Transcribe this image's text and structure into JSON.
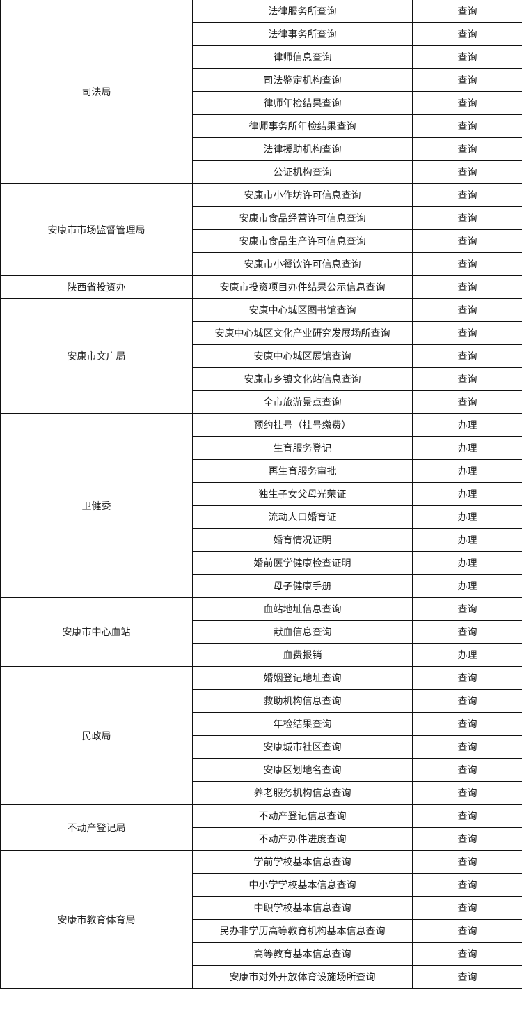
{
  "groups": [
    {
      "department": "司法局",
      "items": [
        {
          "service": "法律服务所查询",
          "type": "查询"
        },
        {
          "service": "法律事务所查询",
          "type": "查询"
        },
        {
          "service": "律师信息查询",
          "type": "查询"
        },
        {
          "service": "司法鉴定机构查询",
          "type": "查询"
        },
        {
          "service": "律师年检结果查询",
          "type": "查询"
        },
        {
          "service": "律师事务所年检结果查询",
          "type": "查询"
        },
        {
          "service": "法律援助机构查询",
          "type": "查询"
        },
        {
          "service": "公证机构查询",
          "type": "查询"
        }
      ]
    },
    {
      "department": "安康市市场监督管理局",
      "items": [
        {
          "service": "安康市小作坊许可信息查询",
          "type": "查询"
        },
        {
          "service": "安康市食品经营许可信息查询",
          "type": "查询"
        },
        {
          "service": "安康市食品生产许可信息查询",
          "type": "查询"
        },
        {
          "service": "安康市小餐饮许可信息查询",
          "type": "查询"
        }
      ]
    },
    {
      "department": "陕西省投资办",
      "items": [
        {
          "service": "安康市投资项目办件结果公示信息查询",
          "type": "查询"
        }
      ]
    },
    {
      "department": "安康市文广局",
      "items": [
        {
          "service": "安康中心城区图书馆查询",
          "type": "查询"
        },
        {
          "service": "安康中心城区文化产业研究发展场所查询",
          "type": "查询"
        },
        {
          "service": "安康中心城区展馆查询",
          "type": "查询"
        },
        {
          "service": "安康市乡镇文化站信息查询",
          "type": "查询"
        },
        {
          "service": "全市旅游景点查询",
          "type": "查询"
        }
      ]
    },
    {
      "department": "卫健委",
      "items": [
        {
          "service": "预约挂号（挂号缴费）",
          "type": "办理"
        },
        {
          "service": "生育服务登记",
          "type": "办理"
        },
        {
          "service": "再生育服务审批",
          "type": "办理"
        },
        {
          "service": "独生子女父母光荣证",
          "type": "办理"
        },
        {
          "service": "流动人口婚育证",
          "type": "办理"
        },
        {
          "service": "婚育情况证明",
          "type": "办理"
        },
        {
          "service": "婚前医学健康检查证明",
          "type": "办理"
        },
        {
          "service": "母子健康手册",
          "type": "办理"
        }
      ]
    },
    {
      "department": "安康市中心血站",
      "items": [
        {
          "service": "血站地址信息查询",
          "type": "查询"
        },
        {
          "service": "献血信息查询",
          "type": "查询"
        },
        {
          "service": "血费报销",
          "type": "办理"
        }
      ]
    },
    {
      "department": "民政局",
      "items": [
        {
          "service": "婚姻登记地址查询",
          "type": "查询"
        },
        {
          "service": "救助机构信息查询",
          "type": "查询"
        },
        {
          "service": "年检结果查询",
          "type": "查询"
        },
        {
          "service": "安康城市社区查询",
          "type": "查询"
        },
        {
          "service": "安康区划地名查询",
          "type": "查询"
        },
        {
          "service": "养老服务机构信息查询",
          "type": "查询"
        }
      ]
    },
    {
      "department": "不动产登记局",
      "items": [
        {
          "service": "不动产登记信息查询",
          "type": "查询"
        },
        {
          "service": "不动产办件进度查询",
          "type": "查询"
        }
      ]
    },
    {
      "department": "安康市教育体育局",
      "items": [
        {
          "service": "学前学校基本信息查询",
          "type": "查询"
        },
        {
          "service": "中小学学校基本信息查询",
          "type": "查询"
        },
        {
          "service": "中职学校基本信息查询",
          "type": "查询"
        },
        {
          "service": "民办非学历高等教育机构基本信息查询",
          "type": "查询"
        },
        {
          "service": "高等教育基本信息查询",
          "type": "查询"
        },
        {
          "service": "安康市对外开放体育设施场所查询",
          "type": "查询"
        }
      ]
    }
  ]
}
